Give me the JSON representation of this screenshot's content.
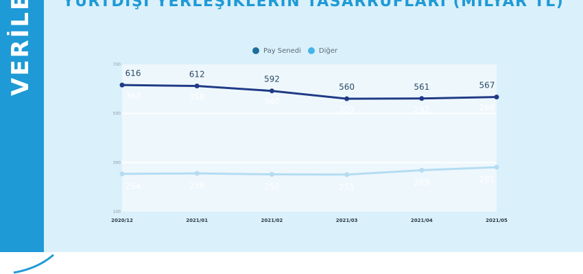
{
  "sidebar": {
    "label": "VERİLER"
  },
  "colors": {
    "sidebar": "#1e9ad6",
    "panel": "#daf0fa",
    "pay_senedi_fill": "#2a8dc0",
    "pay_senedi_line": "#1f3a85",
    "diger_fill": "#45b4e6",
    "diger_line": "#b4dcf2",
    "label_dark": "#2b4a66"
  },
  "chart_data": {
    "type": "area",
    "title": "YURTDIŞI YERLEŞİKLERİN TASARRUFLARI (MİLYAR TL)",
    "x": [
      "2020/12",
      "2021/01",
      "2021/02",
      "2021/03",
      "2021/04",
      "2021/05"
    ],
    "ylim": [
      100,
      700
    ],
    "yticks": [
      "100",
      "300",
      "500",
      "700"
    ],
    "legend_position": "top-center",
    "grid": true,
    "series": [
      {
        "name": "Pay Senedi",
        "values": [
          362,
          356,
          340,
          309,
          292,
          286
        ],
        "color": "#1f3a85"
      },
      {
        "name": "Diğer",
        "values": [
          254,
          256,
          252,
          251,
          269,
          281
        ],
        "color": "#45b4e6"
      }
    ],
    "totals": [
      616,
      612,
      592,
      560,
      561,
      567
    ]
  }
}
